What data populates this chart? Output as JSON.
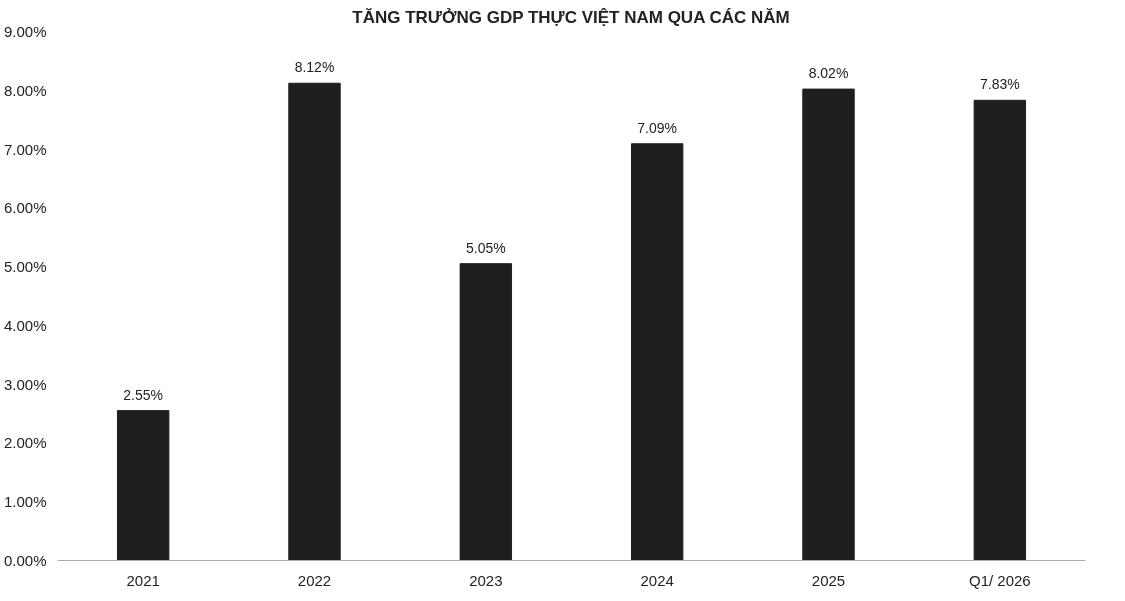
{
  "chart_data": {
    "type": "bar",
    "title": "TĂNG TRƯỞNG GDP THỰC VIỆT NAM QUA CÁC NĂM",
    "categories": [
      "2021",
      "2022",
      "2023",
      "2024",
      "2025",
      "Q1/ 2026"
    ],
    "values": [
      2.55,
      8.12,
      5.05,
      7.09,
      8.02,
      7.83
    ],
    "value_labels": [
      "2.55%",
      "8.12%",
      "5.05%",
      "7.09%",
      "8.02%",
      "7.83%"
    ],
    "color": "#1e1e1e",
    "ylim": [
      0,
      9
    ],
    "yticks": [
      {
        "value": 0,
        "label": "0.00%"
      },
      {
        "value": 1,
        "label": "1.00%"
      },
      {
        "value": 2,
        "label": "2.00%"
      },
      {
        "value": 3,
        "label": "3.00%"
      },
      {
        "value": 4,
        "label": "4.00%"
      },
      {
        "value": 5,
        "label": "5.00%"
      },
      {
        "value": 6,
        "label": "6.00%"
      },
      {
        "value": 7,
        "label": "7.00%"
      },
      {
        "value": 8,
        "label": "8.00%"
      },
      {
        "value": 9,
        "label": "9.00%"
      }
    ],
    "grid": false
  }
}
